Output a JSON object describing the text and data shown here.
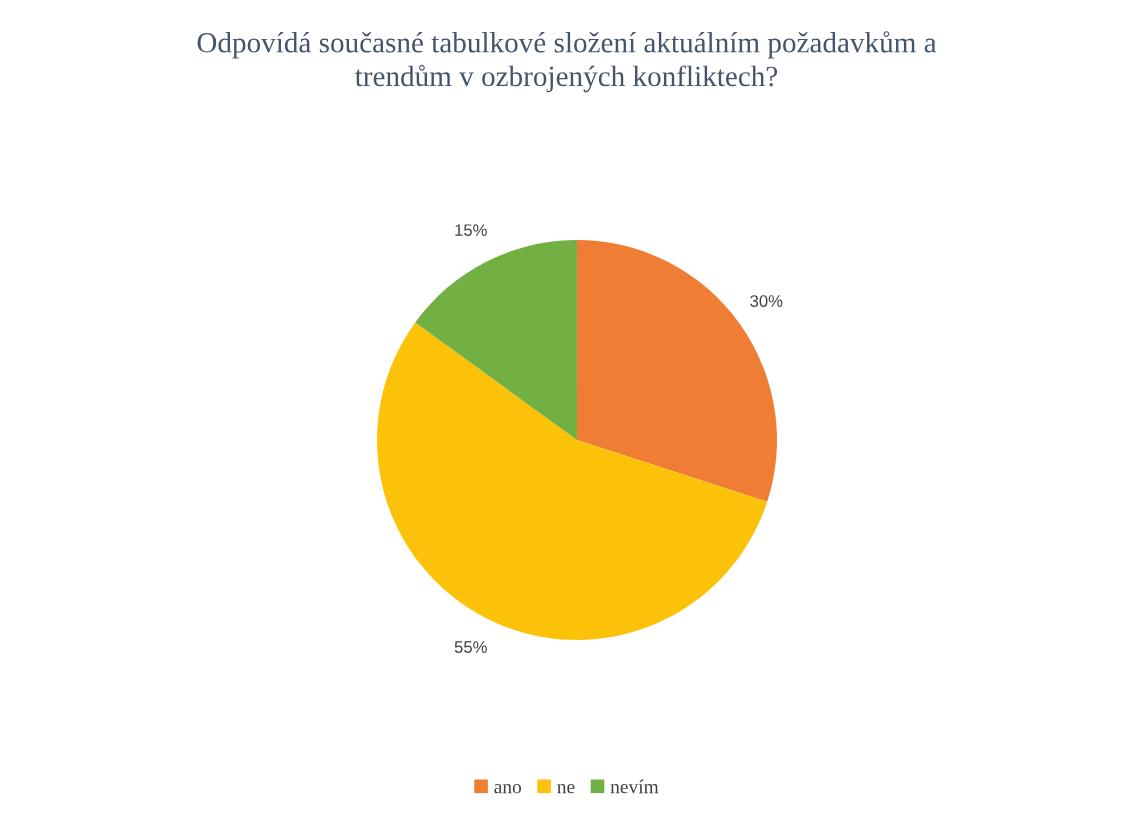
{
  "chart_data": {
    "type": "pie",
    "title": "Odpovídá současné tabulkové složení aktuálním požadavkům a\ntrendům v ozbrojených konfliktech?",
    "categories": [
      "ano",
      "ne",
      "nevím"
    ],
    "values": [
      30,
      55,
      15
    ],
    "colors": [
      "#ef7d33",
      "#fcc20a",
      "#72b043"
    ],
    "value_labels": [
      "30%",
      "55%",
      "15%"
    ],
    "legend": "bottom"
  }
}
